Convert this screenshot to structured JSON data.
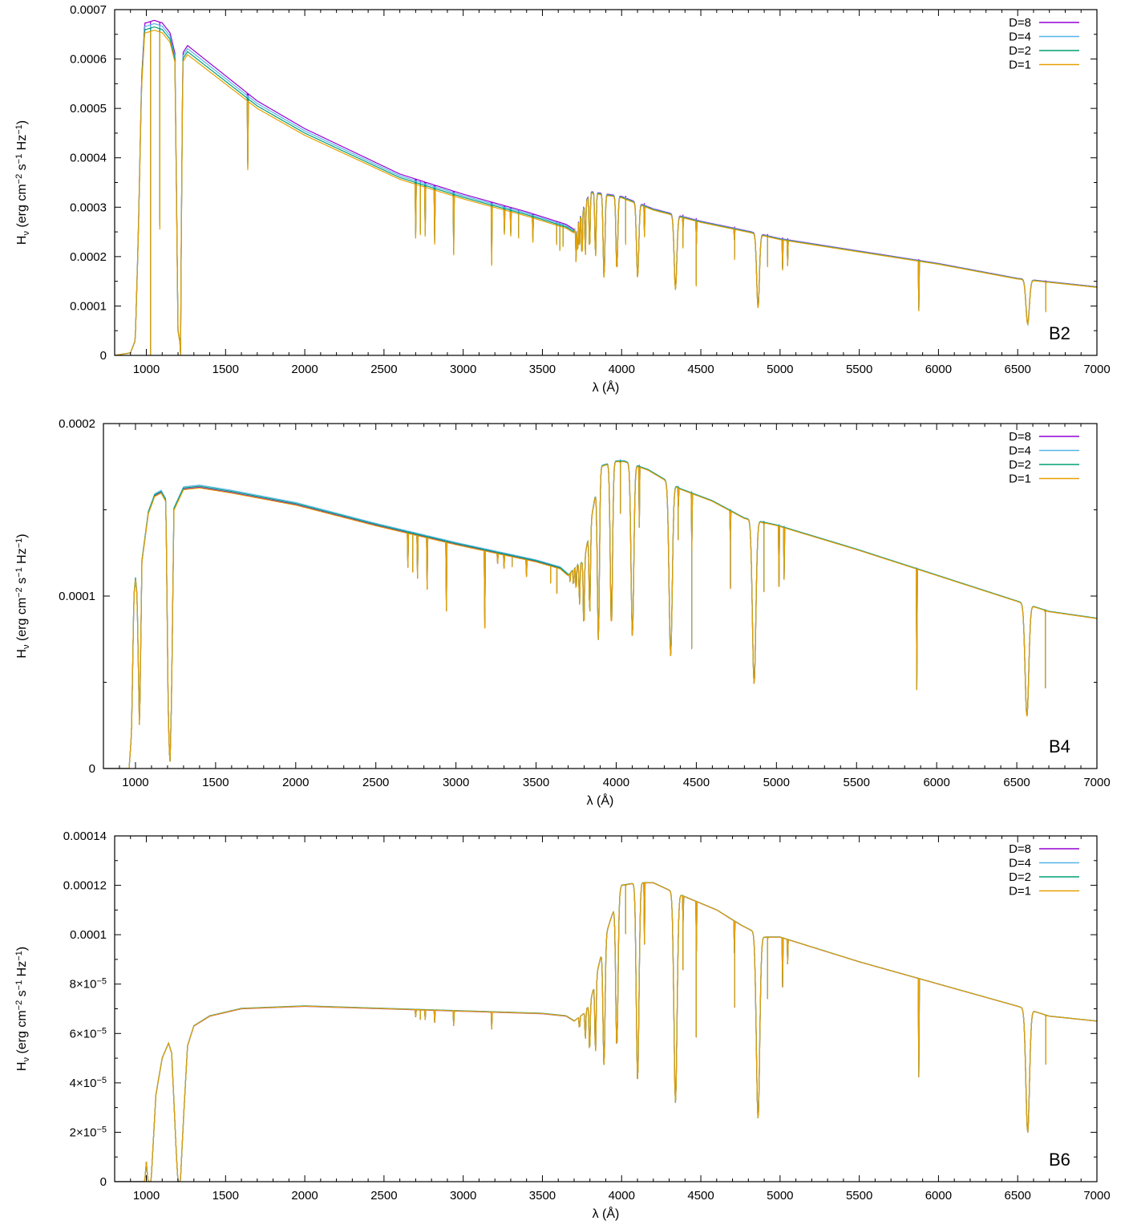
{
  "chart_data": [
    {
      "type": "line",
      "panel_label": "B2",
      "xlabel": "λ (Å)",
      "ylabel": "H_ν (erg cm^−2 s^−1 Hz^−1)",
      "xlim": [
        800,
        7000
      ],
      "ylim": [
        0,
        0.0007
      ],
      "x_ticks": [
        1000,
        1500,
        2000,
        2500,
        3000,
        3500,
        4000,
        4500,
        5000,
        5500,
        6000,
        6500,
        7000
      ],
      "x_tick_labels": [
        "1000",
        "1500",
        "2000",
        "2500",
        "3000",
        "3500",
        "4000",
        "4500",
        "5000",
        "5500",
        "6000",
        "6500",
        "7000"
      ],
      "y_ticks": [
        0,
        0.0001,
        0.0002,
        0.0003,
        0.0004,
        0.0005,
        0.0006,
        0.0007
      ],
      "y_tick_labels": [
        "0",
        "0.0001",
        "0.0002",
        "0.0003",
        "0.0004",
        "0.0005",
        "0.0006",
        "0.0007"
      ],
      "legend_position": "top-right",
      "series": [
        {
          "name": "D=8",
          "color": "#9400d3",
          "scale": 1.02
        },
        {
          "name": "D=4",
          "color": "#56b4e9",
          "scale": 1.01
        },
        {
          "name": "D=2",
          "color": "#009e73",
          "scale": 1.0
        },
        {
          "name": "D=1",
          "color": "#e69f00",
          "scale": 0.99
        }
      ],
      "continuum": [
        [
          800,
          0
        ],
        [
          900,
          5e-06
        ],
        [
          930,
          3e-05
        ],
        [
          950,
          0.00025
        ],
        [
          970,
          0.00055
        ],
        [
          990,
          0.00066
        ],
        [
          1000,
          0.00066
        ],
        [
          1050,
          0.000665
        ],
        [
          1100,
          0.00066
        ],
        [
          1150,
          0.00064
        ],
        [
          1180,
          0.0006
        ],
        [
          1200,
          5e-05
        ],
        [
          1215,
          2e-05
        ],
        [
          1230,
          0.0006
        ],
        [
          1260,
          0.000615
        ],
        [
          1300,
          0.000605
        ],
        [
          1500,
          0.000555
        ],
        [
          1700,
          0.000505
        ],
        [
          2000,
          0.00045
        ],
        [
          2300,
          0.000405
        ],
        [
          2600,
          0.00036
        ],
        [
          3000,
          0.00032
        ],
        [
          3400,
          0.000285
        ],
        [
          3650,
          0.00026
        ],
        [
          3700,
          0.00025
        ],
        [
          3800,
          0.00033
        ],
        [
          4000,
          0.00032
        ],
        [
          4200,
          0.000295
        ],
        [
          4500,
          0.00027
        ],
        [
          4800,
          0.00025
        ],
        [
          5000,
          0.000235
        ],
        [
          5500,
          0.00021
        ],
        [
          6000,
          0.000185
        ],
        [
          6500,
          0.000155
        ],
        [
          7000,
          0.000138
        ]
      ],
      "lines": [
        [
          1026,
          0.00075,
          0.5
        ],
        [
          1085,
          0.0004,
          0.4
        ],
        [
          1216,
          0.0006,
          0.01
        ],
        [
          1640,
          0.00014,
          0.1
        ],
        [
          2700,
          0.00011,
          0.05
        ],
        [
          2730,
          0.0001,
          0.05
        ],
        [
          2760,
          0.0001,
          0.05
        ],
        [
          2820,
          0.00011,
          0.05
        ],
        [
          2940,
          0.00012,
          0.05
        ],
        [
          3180,
          0.00012,
          0.05
        ],
        [
          3260,
          5e-05,
          0.05
        ],
        [
          3300,
          5e-05,
          0.05
        ],
        [
          3350,
          5e-05,
          0.05
        ],
        [
          3440,
          5e-05,
          0.05
        ],
        [
          3590,
          4e-05,
          0.05
        ],
        [
          3610,
          5e-05,
          0.05
        ],
        [
          3630,
          4e-05,
          0.05
        ],
        [
          3712,
          7e-05,
          3
        ],
        [
          3722,
          8e-05,
          3
        ],
        [
          3734,
          8e-05,
          3
        ],
        [
          3750,
          0.0001,
          4
        ],
        [
          3771,
          0.00011,
          4
        ],
        [
          3798,
          0.00012,
          5
        ],
        [
          3835,
          0.00013,
          6
        ],
        [
          3889,
          0.00017,
          8
        ],
        [
          3970,
          0.00015,
          8
        ],
        [
          4026,
          9e-05,
          1
        ],
        [
          4101,
          0.00015,
          10
        ],
        [
          4144,
          6e-05,
          1
        ],
        [
          4340,
          0.00015,
          12
        ],
        [
          4387,
          6e-05,
          1
        ],
        [
          4471,
          0.00013,
          1
        ],
        [
          4713,
          6e-05,
          1
        ],
        [
          4861,
          0.00015,
          12
        ],
        [
          4922,
          6e-05,
          1
        ],
        [
          5016,
          6e-05,
          1
        ],
        [
          5048,
          5e-05,
          1
        ],
        [
          5876,
          0.0001,
          1
        ],
        [
          6563,
          9e-05,
          15
        ],
        [
          6678,
          6e-05,
          1
        ]
      ]
    },
    {
      "type": "line",
      "panel_label": "B4",
      "xlabel": "λ (Å)",
      "ylabel": "H_ν (erg cm^−2 s^−1 Hz^−1)",
      "xlim": [
        800,
        7000
      ],
      "ylim": [
        0,
        0.0002
      ],
      "x_ticks": [
        1000,
        1500,
        2000,
        2500,
        3000,
        3500,
        4000,
        4500,
        5000,
        5500,
        6000,
        6500,
        7000
      ],
      "x_tick_labels": [
        "1000",
        "1500",
        "2000",
        "2500",
        "3000",
        "3500",
        "4000",
        "4500",
        "5000",
        "5500",
        "6000",
        "6500",
        "7000"
      ],
      "y_ticks": [
        0,
        0.0001,
        0.0002
      ],
      "y_tick_labels": [
        "0",
        "0.0001",
        "0.0002"
      ],
      "legend_position": "top-right",
      "series": [
        {
          "name": "D=8",
          "color": "#9400d3",
          "scale": 1.0
        },
        {
          "name": "D=4",
          "color": "#56b4e9",
          "scale": 1.008
        },
        {
          "name": "D=2",
          "color": "#009e73",
          "scale": 1.004
        },
        {
          "name": "D=1",
          "color": "#e69f00",
          "scale": 0.998
        }
      ],
      "continuum": [
        [
          800,
          0
        ],
        [
          960,
          0
        ],
        [
          975,
          2e-05
        ],
        [
          990,
          0.0001
        ],
        [
          1000,
          0.00011
        ],
        [
          1010,
          0.0001
        ],
        [
          1025,
          2e-05
        ],
        [
          1040,
          0.00012
        ],
        [
          1080,
          0.000148
        ],
        [
          1120,
          0.000158
        ],
        [
          1160,
          0.00016
        ],
        [
          1190,
          0.000155
        ],
        [
          1205,
          3e-05
        ],
        [
          1215,
          0
        ],
        [
          1225,
          4e-05
        ],
        [
          1240,
          0.00015
        ],
        [
          1300,
          0.000162
        ],
        [
          1400,
          0.000163
        ],
        [
          1600,
          0.00016
        ],
        [
          2000,
          0.000153
        ],
        [
          2500,
          0.000141
        ],
        [
          3000,
          0.00013
        ],
        [
          3500,
          0.00012
        ],
        [
          3650,
          0.000116
        ],
        [
          3700,
          0.000112
        ],
        [
          3760,
          0.000118
        ],
        [
          3800,
          0.00012
        ],
        [
          3900,
          0.000175
        ],
        [
          4000,
          0.000178
        ],
        [
          4050,
          0.000178
        ],
        [
          4200,
          0.000173
        ],
        [
          4400,
          0.000162
        ],
        [
          4600,
          0.000155
        ],
        [
          4800,
          0.000145
        ],
        [
          4950,
          0.000142
        ],
        [
          5000,
          0.000141
        ],
        [
          5500,
          0.000127
        ],
        [
          6000,
          0.000112
        ],
        [
          6500,
          9.7e-05
        ],
        [
          6700,
          9.1e-05
        ],
        [
          7000,
          8.7e-05
        ]
      ],
      "lines": [
        [
          2700,
          2e-05,
          0.05
        ],
        [
          2730,
          2.2e-05,
          0.05
        ],
        [
          2760,
          2.5e-05,
          0.05
        ],
        [
          2820,
          3e-05,
          0.05
        ],
        [
          2940,
          4e-05,
          0.05
        ],
        [
          3180,
          4.5e-05,
          0.05
        ],
        [
          3260,
          6e-06,
          0.05
        ],
        [
          3300,
          8e-06,
          0.05
        ],
        [
          3350,
          6e-06,
          0.05
        ],
        [
          3440,
          1e-05,
          0.05
        ],
        [
          3590,
          1e-05,
          0.05
        ],
        [
          3630,
          1.5e-05,
          0.05
        ],
        [
          3712,
          5e-06,
          2
        ],
        [
          3734,
          1.2e-05,
          3
        ],
        [
          3750,
          1.8e-05,
          3
        ],
        [
          3771,
          2.5e-05,
          4
        ],
        [
          3798,
          4e-05,
          5
        ],
        [
          3835,
          5e-05,
          6
        ],
        [
          3889,
          9.5e-05,
          9
        ],
        [
          3970,
          9.5e-05,
          10
        ],
        [
          4026,
          3e-05,
          1
        ],
        [
          4101,
          0.0001,
          12
        ],
        [
          4144,
          3.5e-05,
          1
        ],
        [
          4340,
          0.0001,
          14
        ],
        [
          4387,
          3e-05,
          1
        ],
        [
          4471,
          9e-05,
          1
        ],
        [
          4713,
          4.5e-05,
          1
        ],
        [
          4861,
          9.5e-05,
          15
        ],
        [
          4922,
          4e-05,
          1
        ],
        [
          5016,
          3.5e-05,
          1
        ],
        [
          5048,
          3e-05,
          1
        ],
        [
          5876,
          7e-05,
          1
        ],
        [
          6563,
          6.5e-05,
          16
        ],
        [
          6678,
          4.5e-05,
          1
        ]
      ]
    },
    {
      "type": "line",
      "panel_label": "B6",
      "xlabel": "λ (Å)",
      "ylabel": "H_ν (erg cm^−2 s^−1 Hz^−1)",
      "xlim": [
        800,
        7000
      ],
      "ylim": [
        0,
        0.00014
      ],
      "x_ticks": [
        1000,
        1500,
        2000,
        2500,
        3000,
        3500,
        4000,
        4500,
        5000,
        5500,
        6000,
        6500,
        7000
      ],
      "x_tick_labels": [
        "1000",
        "1500",
        "2000",
        "2500",
        "3000",
        "3500",
        "4000",
        "4500",
        "5000",
        "5500",
        "6000",
        "6500",
        "7000"
      ],
      "y_ticks": [
        0,
        2e-05,
        4e-05,
        6e-05,
        8e-05,
        0.0001,
        0.00012,
        0.00014
      ],
      "y_tick_labels": [
        "0",
        "2×10^−5",
        "4×10^−5",
        "6×10^−5",
        "8×10^−5",
        "0.0001",
        "0.00012",
        "0.00014"
      ],
      "legend_position": "top-right",
      "series": [
        {
          "name": "D=8",
          "color": "#9400d3",
          "scale": 1.0
        },
        {
          "name": "D=4",
          "color": "#56b4e9",
          "scale": 1.003
        },
        {
          "name": "D=2",
          "color": "#009e73",
          "scale": 1.002
        },
        {
          "name": "D=1",
          "color": "#e69f00",
          "scale": 1.001
        }
      ],
      "continuum": [
        [
          800,
          0
        ],
        [
          990,
          0
        ],
        [
          1000,
          8e-06
        ],
        [
          1010,
          0
        ],
        [
          1030,
          0
        ],
        [
          1060,
          3.5e-05
        ],
        [
          1100,
          5e-05
        ],
        [
          1140,
          5.6e-05
        ],
        [
          1160,
          5.2e-05
        ],
        [
          1190,
          1e-05
        ],
        [
          1200,
          0
        ],
        [
          1215,
          0
        ],
        [
          1230,
          2e-05
        ],
        [
          1260,
          5.5e-05
        ],
        [
          1300,
          6.3e-05
        ],
        [
          1400,
          6.7e-05
        ],
        [
          1600,
          7e-05
        ],
        [
          2000,
          7.1e-05
        ],
        [
          2500,
          7e-05
        ],
        [
          3000,
          6.9e-05
        ],
        [
          3500,
          6.8e-05
        ],
        [
          3650,
          6.7e-05
        ],
        [
          3700,
          6.5e-05
        ],
        [
          3760,
          6.8e-05
        ],
        [
          3800,
          7.2e-05
        ],
        [
          3900,
          0.0001
        ],
        [
          4000,
          0.00012
        ],
        [
          4100,
          0.000121
        ],
        [
          4200,
          0.000121
        ],
        [
          4300,
          0.000118
        ],
        [
          4450,
          0.000114
        ],
        [
          4600,
          0.00011
        ],
        [
          4750,
          0.000104
        ],
        [
          4900,
          9.9e-05
        ],
        [
          5000,
          9.9e-05
        ],
        [
          5500,
          8.9e-05
        ],
        [
          6000,
          8e-05
        ],
        [
          6500,
          7.1e-05
        ],
        [
          6700,
          6.7e-05
        ],
        [
          7000,
          6.5e-05
        ]
      ],
      "lines": [
        [
          2700,
          3e-06,
          0.05
        ],
        [
          2730,
          4e-06,
          0.05
        ],
        [
          2760,
          4e-06,
          0.05
        ],
        [
          2820,
          5e-06,
          0.05
        ],
        [
          2940,
          6e-06,
          0.05
        ],
        [
          3180,
          7e-06,
          0.05
        ],
        [
          3734,
          6e-06,
          3
        ],
        [
          3771,
          1.2e-05,
          4
        ],
        [
          3798,
          2e-05,
          5
        ],
        [
          3835,
          3e-05,
          6
        ],
        [
          3889,
          5e-05,
          9
        ],
        [
          3970,
          6e-05,
          10
        ],
        [
          4026,
          2e-05,
          1
        ],
        [
          4101,
          8e-05,
          12
        ],
        [
          4144,
          2.5e-05,
          1
        ],
        [
          4340,
          8.5e-05,
          14
        ],
        [
          4387,
          3e-05,
          1
        ],
        [
          4471,
          5.5e-05,
          1
        ],
        [
          4713,
          3.5e-05,
          1
        ],
        [
          4861,
          7.5e-05,
          15
        ],
        [
          4922,
          2.5e-05,
          1
        ],
        [
          5016,
          2e-05,
          1
        ],
        [
          5048,
          1e-05,
          1
        ],
        [
          5876,
          4e-05,
          1
        ],
        [
          6563,
          5e-05,
          16
        ],
        [
          6678,
          2e-05,
          1
        ]
      ]
    }
  ]
}
